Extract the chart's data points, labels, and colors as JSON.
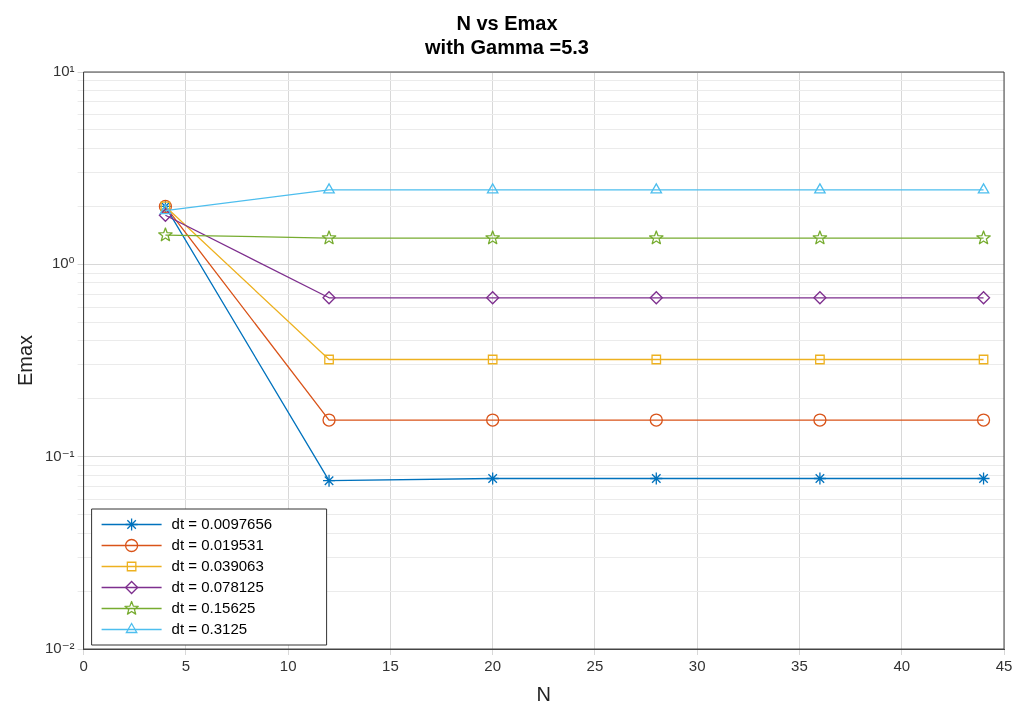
{
  "chart_data": {
    "type": "line",
    "title": "N vs Emax\nwith Gamma =5.3",
    "xlabel": "N",
    "ylabel": "Emax",
    "x": [
      4,
      12,
      20,
      28,
      36,
      44
    ],
    "series": [
      {
        "name": "dt = 0.0097656",
        "color": "#0072bd",
        "marker": "cross",
        "values": [
          2.0,
          0.075,
          0.077,
          0.077,
          0.077,
          0.077
        ]
      },
      {
        "name": "dt = 0.019531",
        "color": "#d95319",
        "marker": "circle",
        "values": [
          2.0,
          0.155,
          0.155,
          0.155,
          0.155,
          0.155
        ]
      },
      {
        "name": "dt = 0.039063",
        "color": "#edb120",
        "marker": "square",
        "values": [
          2.0,
          0.32,
          0.32,
          0.32,
          0.32,
          0.32
        ]
      },
      {
        "name": "dt = 0.078125",
        "color": "#7e2f8e",
        "marker": "diamond",
        "values": [
          1.8,
          0.67,
          0.67,
          0.67,
          0.67,
          0.67
        ]
      },
      {
        "name": "dt = 0.15625",
        "color": "#77ac30",
        "marker": "star",
        "values": [
          1.42,
          1.37,
          1.37,
          1.37,
          1.37,
          1.37
        ]
      },
      {
        "name": "dt = 0.3125",
        "color": "#4dbeee",
        "marker": "triangle",
        "values": [
          1.9,
          2.44,
          2.44,
          2.44,
          2.44,
          2.44
        ]
      }
    ],
    "log": "y",
    "xlim": [
      0,
      45
    ],
    "xticks": [
      0,
      5,
      10,
      15,
      20,
      25,
      30,
      35,
      40,
      45
    ],
    "ylim": [
      0.01,
      10
    ],
    "yticks": [
      {
        "value": 0.01,
        "label": "10⁻²"
      },
      {
        "value": 0.02,
        "label": null
      },
      {
        "value": 0.03,
        "label": null
      },
      {
        "value": 0.04,
        "label": null
      },
      {
        "value": 0.05,
        "label": null
      },
      {
        "value": 0.06,
        "label": null
      },
      {
        "value": 0.07,
        "label": null
      },
      {
        "value": 0.08,
        "label": null
      },
      {
        "value": 0.09,
        "label": null
      },
      {
        "value": 0.1,
        "label": "10⁻¹"
      },
      {
        "value": 0.2,
        "label": null
      },
      {
        "value": 0.3,
        "label": null
      },
      {
        "value": 0.4,
        "label": null
      },
      {
        "value": 0.5,
        "label": null
      },
      {
        "value": 0.6,
        "label": null
      },
      {
        "value": 0.7,
        "label": null
      },
      {
        "value": 0.8,
        "label": null
      },
      {
        "value": 0.9,
        "label": null
      },
      {
        "value": 1,
        "label": "10⁰"
      },
      {
        "value": 2,
        "label": null
      },
      {
        "value": 3,
        "label": null
      },
      {
        "value": 4,
        "label": null
      },
      {
        "value": 5,
        "label": null
      },
      {
        "value": 6,
        "label": null
      },
      {
        "value": 7,
        "label": null
      },
      {
        "value": 8,
        "label": null
      },
      {
        "value": 9,
        "label": null
      },
      {
        "value": 10,
        "label": "10¹"
      }
    ],
    "grid": true,
    "legend": "bottom left"
  }
}
